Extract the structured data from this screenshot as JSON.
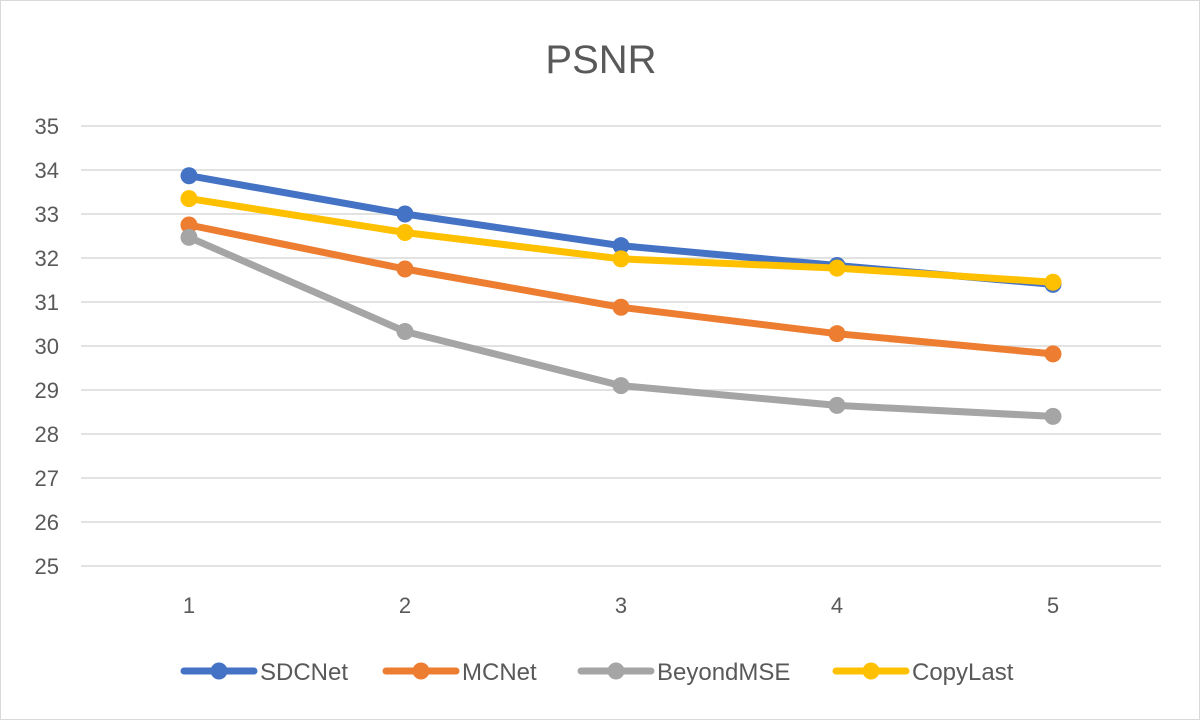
{
  "chart_data": {
    "type": "line",
    "title": "PSNR",
    "x": [
      "1",
      "2",
      "3",
      "4",
      "5"
    ],
    "ylim": [
      25,
      35
    ],
    "yticks": [
      25,
      26,
      27,
      28,
      29,
      30,
      31,
      32,
      33,
      34,
      35
    ],
    "grid": true,
    "legend_position": "bottom",
    "series": [
      {
        "name": "SDCNet",
        "color": "#4472C4",
        "values": [
          33.87,
          33.0,
          32.28,
          31.83,
          31.4
        ]
      },
      {
        "name": "MCNet",
        "color": "#ED7D31",
        "values": [
          32.75,
          31.75,
          30.88,
          30.28,
          29.82
        ]
      },
      {
        "name": "BeyondMSE",
        "color": "#A5A5A5",
        "values": [
          32.47,
          30.33,
          29.1,
          28.65,
          28.4
        ]
      },
      {
        "name": "CopyLast",
        "color": "#FFC000",
        "values": [
          33.35,
          32.58,
          31.98,
          31.77,
          31.45
        ]
      }
    ]
  }
}
